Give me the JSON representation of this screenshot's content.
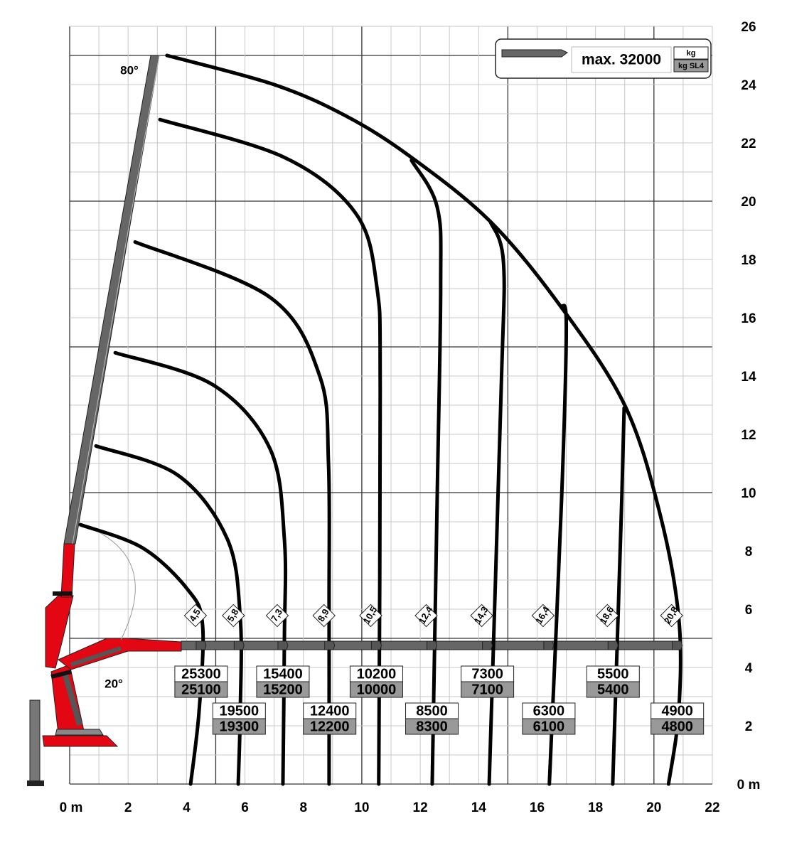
{
  "chart_data": {
    "type": "load-chart",
    "xlim": [
      0,
      22
    ],
    "ylim": [
      0,
      26
    ],
    "xticks": [
      {
        "value": 0,
        "label": "0 m"
      },
      2,
      4,
      6,
      8,
      10,
      12,
      14,
      16,
      18,
      20,
      22
    ],
    "yticks": [
      {
        "value": 0,
        "label": "0 m"
      },
      2,
      4,
      6,
      8,
      10,
      12,
      14,
      16,
      18,
      20,
      22,
      24,
      26
    ],
    "grid": true,
    "color": "#000000",
    "legend": {
      "label": "max. 32000",
      "unit": "kg",
      "unit_sl4": "kg SL4"
    },
    "angle_labels": [
      "80°",
      "20°"
    ],
    "curves": [
      {
        "reach": {
          "value": 4.5,
          "label": "4,5"
        },
        "load": 25300,
        "load_sl4": 25100,
        "x": [
          0.37,
          2.5,
          4.06,
          4.55,
          4.43,
          4.14
        ],
        "y": [
          8.9,
          8.1,
          6.65,
          5.45,
          2.5,
          0
        ]
      },
      {
        "reach": {
          "value": 5.8,
          "label": "5,8"
        },
        "load": 19500,
        "load_sl4": 19300,
        "x": [
          0.9,
          3.7,
          5.4,
          5.84,
          5.84,
          5.77
        ],
        "y": [
          11.6,
          10.6,
          8.4,
          5.7,
          2.5,
          0
        ]
      },
      {
        "reach": {
          "value": 7.3,
          "label": "7,3"
        },
        "load": 15400,
        "load_sl4": 15200,
        "x": [
          1.56,
          4.9,
          6.86,
          7.35,
          7.35,
          7.3
        ],
        "y": [
          14.8,
          13.7,
          11.5,
          8.4,
          4.95,
          0
        ]
      },
      {
        "reach": {
          "value": 8.9,
          "label": "8,9"
        },
        "load": 12400,
        "load_sl4": 12200,
        "x": [
          2.24,
          6.86,
          8.56,
          8.86,
          8.88,
          8.88
        ],
        "y": [
          18.6,
          16.7,
          14.0,
          11.0,
          6.2,
          0
        ]
      },
      {
        "reach": {
          "value": 10.5,
          "label": "10,5"
        },
        "load": 10200,
        "load_sl4": 10000,
        "x": [
          3.09,
          7.35,
          9.78,
          10.51,
          10.63,
          10.58
        ],
        "y": [
          22.8,
          21.5,
          19.6,
          17.1,
          13.5,
          0
        ]
      },
      {
        "reach": {
          "value": 12.4,
          "label": "12,4"
        },
        "load": 8500,
        "load_sl4": 8300,
        "x": [
          11.7,
          12.58,
          12.7,
          12.58,
          12.41
        ],
        "y": [
          21.4,
          19.8,
          17.1,
          9.8,
          0
        ]
      },
      {
        "reach": {
          "value": 14.3,
          "label": "14,3"
        },
        "load": 7300,
        "load_sl4": 7100,
        "x": [
          14.4,
          14.85,
          14.77,
          14.36
        ],
        "y": [
          19.3,
          17.9,
          13.5,
          0
        ]
      },
      {
        "reach": {
          "value": 16.4,
          "label": "16,4"
        },
        "load": 6300,
        "load_sl4": 6100,
        "x": [
          16.84,
          17.0,
          16.84,
          16.42
        ],
        "y": [
          16.4,
          15.7,
          9.8,
          0
        ]
      },
      {
        "reach": {
          "value": 18.6,
          "label": "18,6"
        },
        "load": 5500,
        "load_sl4": 5400,
        "x": [
          18.98,
          18.9,
          18.59
        ],
        "y": [
          12.9,
          9.8,
          0
        ]
      },
      {
        "reach": {
          "value": 20.8,
          "label": "20,8"
        },
        "load": 4900,
        "load_sl4": 4800,
        "x": [
          3.33,
          7.0,
          9.5,
          11.7,
          14.4,
          16.8,
          19.0,
          20.2,
          20.85,
          20.85,
          20.5
        ],
        "y": [
          25,
          24.0,
          22.9,
          21.5,
          19.3,
          16.4,
          13.0,
          9.3,
          5.7,
          2.5,
          0
        ]
      }
    ]
  }
}
